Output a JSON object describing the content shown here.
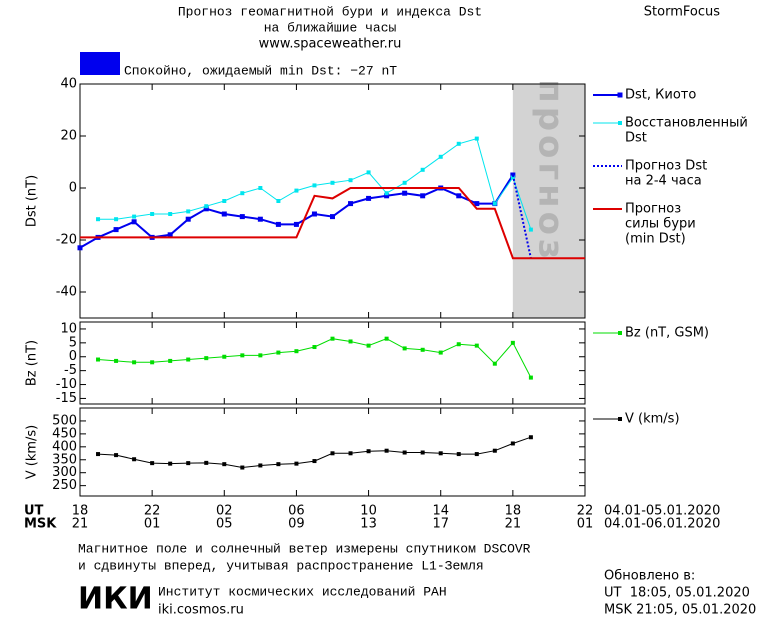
{
  "header": {
    "title": "Прогноз геомагнитной бури и индекса Dst",
    "title2": "на ближайшие часы",
    "url": "www.spaceweather.ru",
    "brand": "StormFocus",
    "status": "Спокойно, ожидаемый min Dst: −27 nT",
    "status_color": "#0000ee"
  },
  "time_axis": {
    "xlim": [
      0,
      28
    ],
    "ut_label": "UT",
    "msk_label": "MSK",
    "ut_ticks": [
      {
        "value": 0,
        "label": "18"
      },
      {
        "value": 4,
        "label": "22"
      },
      {
        "value": 8,
        "label": "02"
      },
      {
        "value": 12,
        "label": "06"
      },
      {
        "value": 16,
        "label": "10"
      },
      {
        "value": 20,
        "label": "14"
      },
      {
        "value": 24,
        "label": "18"
      },
      {
        "value": 28,
        "label": "22"
      }
    ],
    "msk_ticks": [
      {
        "value": 0,
        "label": "21"
      },
      {
        "value": 4,
        "label": "01"
      },
      {
        "value": 8,
        "label": "05"
      },
      {
        "value": 12,
        "label": "09"
      },
      {
        "value": 16,
        "label": "13"
      },
      {
        "value": 20,
        "label": "17"
      },
      {
        "value": 24,
        "label": "21"
      },
      {
        "value": 28,
        "label": "01"
      }
    ],
    "ut_range": "04.01-05.01.2020",
    "msk_range": "04.01-06.01.2020"
  },
  "chart_data": [
    {
      "type": "line",
      "ylabel": "Dst (nT)",
      "ylim": [
        -50,
        40
      ],
      "yticks": [
        -40,
        -20,
        0,
        20,
        40
      ],
      "forecast_region": {
        "x": [
          24,
          28
        ],
        "label": "прогноз",
        "color": "#d3d3d3"
      },
      "series": [
        {
          "name": [
            "Dst, Киото"
          ],
          "color": "#0000ee",
          "marker": 5,
          "width": 2,
          "x": [
            0,
            1,
            2,
            3,
            4,
            5,
            6,
            7,
            8,
            9,
            10,
            11,
            12,
            13,
            14,
            15,
            16,
            17,
            18,
            19,
            20,
            21,
            22,
            23,
            24
          ],
          "values": [
            -23,
            -19,
            -16,
            -13,
            -19,
            -18,
            -12,
            -8,
            -10,
            -11,
            -12,
            -14,
            -14,
            -10,
            -11,
            -6,
            -4,
            -3,
            -2,
            -3,
            0,
            -3,
            -6,
            -6,
            5
          ]
        },
        {
          "name": [
            "Восстановленный",
            "Dst"
          ],
          "color": "#00e5ee",
          "marker": 4,
          "width": 1,
          "x": [
            1,
            2,
            3,
            4,
            5,
            6,
            7,
            8,
            9,
            10,
            11,
            12,
            13,
            14,
            15,
            16,
            17,
            18,
            19,
            20,
            21,
            22,
            23,
            24,
            25
          ],
          "values": [
            -12,
            -12,
            -11,
            -10,
            -10,
            -9,
            -7,
            -5,
            -2,
            0,
            -5,
            -1,
            1,
            2,
            3,
            6,
            -2,
            2,
            7,
            12,
            17,
            19,
            -6,
            4,
            -16
          ]
        },
        {
          "name": [
            "Прогноз Dst",
            "на 2-4 часа"
          ],
          "color": "#0000ee",
          "dash": "2,2",
          "width": 2,
          "x": [
            24,
            25
          ],
          "values": [
            5,
            -27
          ]
        },
        {
          "name": [
            "Прогноз",
            "силы бури",
            "(min Dst)"
          ],
          "color": "#dd0000",
          "width": 2,
          "x": [
            0,
            12,
            13,
            14,
            15,
            21,
            22,
            23,
            24,
            28
          ],
          "values": [
            -19,
            -19,
            -3,
            -4,
            0,
            0,
            -8,
            -8,
            -27,
            -27
          ]
        }
      ]
    },
    {
      "type": "line",
      "ylabel": "Bz (nT)",
      "ylim": [
        -17,
        12.5
      ],
      "yticks": [
        -15,
        -10,
        -5,
        0,
        5,
        10
      ],
      "series": [
        {
          "name": [
            "Bz (nT, GSM)"
          ],
          "color": "#00dd00",
          "marker": 4,
          "width": 1,
          "x": [
            1,
            2,
            3,
            4,
            5,
            6,
            7,
            8,
            9,
            10,
            11,
            12,
            13,
            14,
            15,
            16,
            17,
            18,
            19,
            20,
            21,
            22,
            23,
            24,
            25
          ],
          "values": [
            -1,
            -1.5,
            -2,
            -2,
            -1.5,
            -1,
            -0.5,
            0,
            0.5,
            0.5,
            1.5,
            2,
            3.5,
            6.5,
            5.5,
            4,
            6.5,
            3,
            2.5,
            1.5,
            4.5,
            4,
            -2.5,
            5,
            -7.5
          ]
        }
      ]
    },
    {
      "type": "line",
      "ylabel": "V (km/s)",
      "ylim": [
        210,
        550
      ],
      "yticks": [
        250,
        300,
        350,
        400,
        450,
        500
      ],
      "series": [
        {
          "name": [
            "V (km/s)"
          ],
          "color": "#000000",
          "marker": 4,
          "width": 1,
          "x": [
            1,
            2,
            3,
            4,
            5,
            6,
            7,
            8,
            9,
            10,
            11,
            12,
            13,
            14,
            15,
            16,
            17,
            18,
            19,
            20,
            21,
            22,
            23,
            24,
            25
          ],
          "values": [
            372,
            368,
            352,
            337,
            335,
            337,
            338,
            333,
            320,
            328,
            333,
            335,
            345,
            375,
            375,
            383,
            385,
            378,
            378,
            375,
            372,
            372,
            385,
            413,
            437
          ]
        }
      ]
    }
  ],
  "footer": {
    "note1": "Магнитное поле и солнечный ветер измерены спутником DSCOVR",
    "note2": "и сдвинуты вперед, учитывая распространение L1-Земля",
    "logo": "ИКИ",
    "institute": "Институт космических исследований РАН",
    "site": "iki.cosmos.ru",
    "updated": "Обновлено в:",
    "updated_ut": "UT  18:05, 05.01.2020",
    "updated_msk": "MSK 21:05, 05.01.2020"
  }
}
